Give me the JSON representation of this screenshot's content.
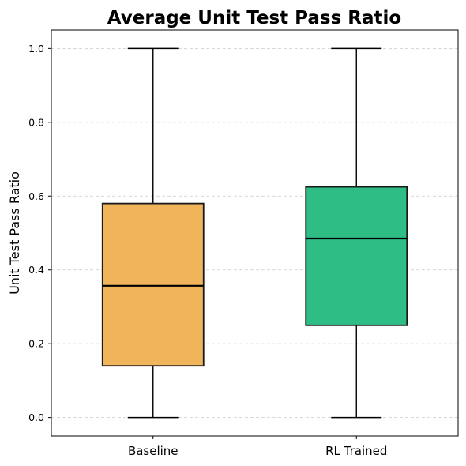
{
  "chart_data": {
    "type": "box",
    "title": "Average Unit Test Pass Ratio",
    "xlabel": "",
    "ylabel": "Unit Test Pass Ratio",
    "ylim": [
      -0.05,
      1.05
    ],
    "yticks": [
      "0.0",
      "0.2",
      "0.4",
      "0.6",
      "0.8",
      "1.0"
    ],
    "ytick_values": [
      0.0,
      0.2,
      0.4,
      0.6,
      0.8,
      1.0
    ],
    "grid": "y-dashed",
    "categories": [
      "Baseline",
      "RL Trained"
    ],
    "boxes": [
      {
        "category": "Baseline",
        "min": 0.0,
        "q1": 0.14,
        "median": 0.357,
        "q3": 0.58,
        "max": 1.0,
        "color": "#f0b55a"
      },
      {
        "category": "RL Trained",
        "min": 0.0,
        "q1": 0.25,
        "median": 0.485,
        "q3": 0.625,
        "max": 1.0,
        "color": "#2ebd85"
      }
    ]
  }
}
